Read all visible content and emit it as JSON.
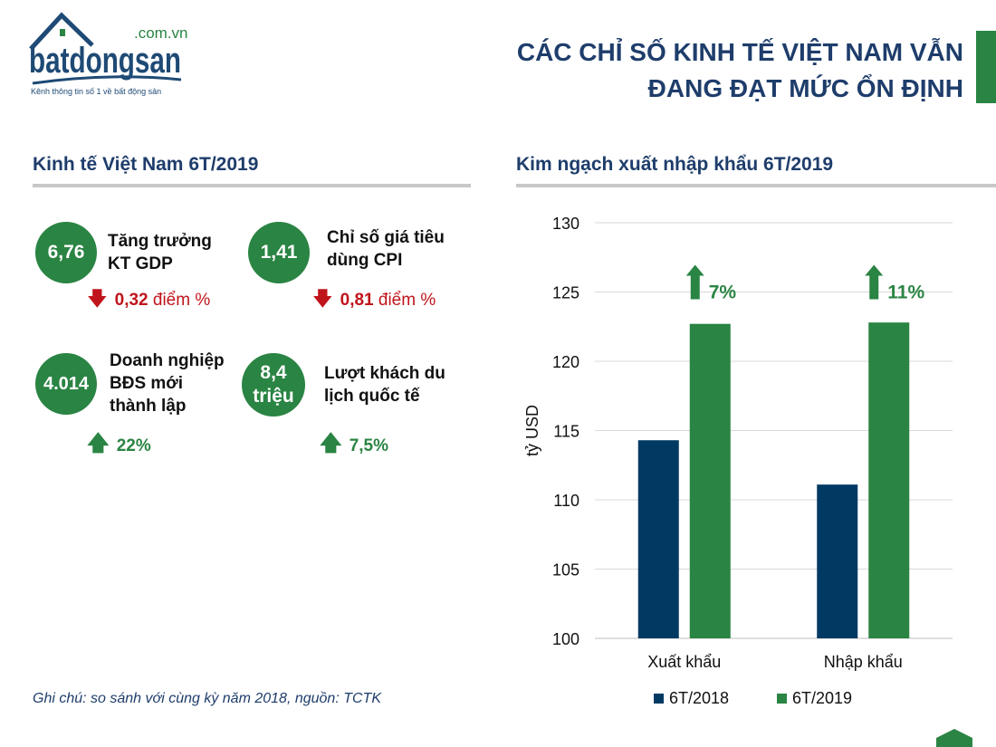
{
  "logo": {
    "domain": ".com.vn",
    "brand": "batdongsan",
    "tagline": "Kênh thông tin số 1 về bất động sản"
  },
  "header": {
    "title_line1": "CÁC CHỈ SỐ KINH TẾ VIỆT NAM VẪN",
    "title_line2": "ĐANG ĐẠT MỨC ỔN ĐỊNH"
  },
  "left": {
    "title": "Kinh tế Việt Nam 6T/2019",
    "items": [
      {
        "value": "6,76",
        "label1": "Tăng trưởng",
        "label2": "KT GDP",
        "change_value": "0,32",
        "change_unit": "điểm %",
        "direction": "down"
      },
      {
        "value": "1,41",
        "label1": "Chỉ số giá tiêu",
        "label2": "dùng CPI",
        "change_value": "0,81",
        "change_unit": "điểm %",
        "direction": "down"
      },
      {
        "value": "4.014",
        "label1": "Doanh nghiệp",
        "label2": "BĐS mới",
        "label3": "thành lập",
        "change_value": "22%",
        "direction": "up"
      },
      {
        "value1": "8,4",
        "value2": "triệu",
        "label1": "Lượt khách du",
        "label2": "lịch quốc tế",
        "change_value": "7,5%",
        "direction": "up"
      }
    ],
    "note": "Ghi chú: so sánh với cùng kỳ năm 2018, nguồn: TCTK"
  },
  "colors": {
    "green": "#2a8443",
    "navy": "#003a63",
    "red": "#c0141c",
    "title": "#1e3d6b"
  },
  "chart_data": {
    "type": "bar",
    "title": "Kim ngạch xuất nhập khẩu 6T/2019",
    "categories": [
      "Xuất khẩu",
      "Nhập khẩu"
    ],
    "series": [
      {
        "name": "6T/2018",
        "values": [
          114.3,
          111.1
        ],
        "color": "#003a63"
      },
      {
        "name": "6T/2019",
        "values": [
          122.7,
          122.8
        ],
        "color": "#2a8443"
      }
    ],
    "annotations": [
      "7%",
      "11%"
    ],
    "ylabel": "tỷ USD",
    "ylim": [
      100,
      130
    ],
    "yticks": [
      100,
      105,
      110,
      115,
      120,
      125,
      130
    ],
    "grid": true,
    "legend": "bottom"
  }
}
